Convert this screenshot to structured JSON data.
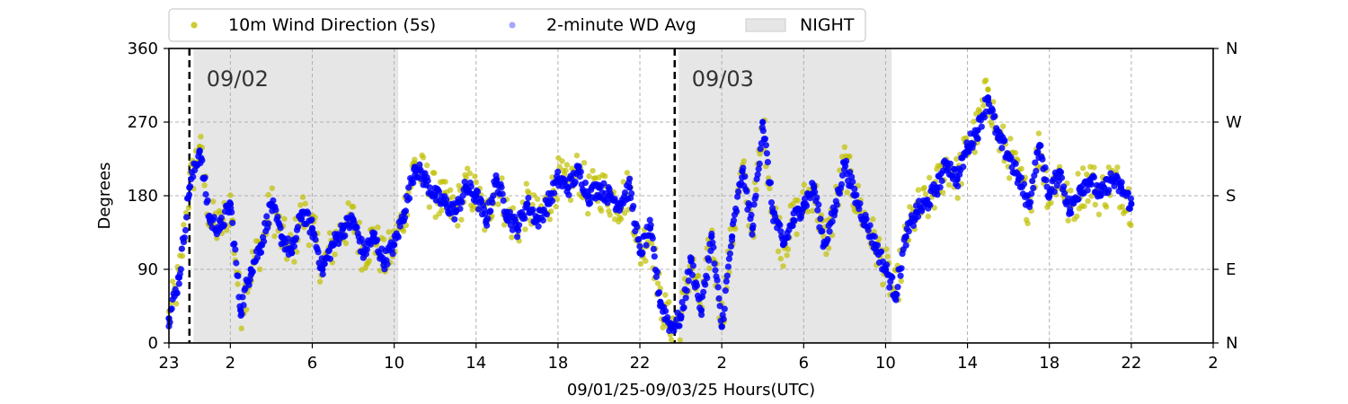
{
  "chart_data": {
    "type": "scatter",
    "xlabel": "09/01/25-09/03/25  Hours(UTC)",
    "ylabel": "Degrees",
    "x_start_label": "23",
    "xlim_hours": [
      0,
      51
    ],
    "ylim": [
      0,
      360
    ],
    "x_ticks": [
      {
        "h": 0,
        "label": "23"
      },
      {
        "h": 3,
        "label": "2"
      },
      {
        "h": 7,
        "label": "6"
      },
      {
        "h": 11,
        "label": "10"
      },
      {
        "h": 15,
        "label": "14"
      },
      {
        "h": 19,
        "label": "18"
      },
      {
        "h": 23,
        "label": "22"
      },
      {
        "h": 27,
        "label": "2"
      },
      {
        "h": 31,
        "label": "6"
      },
      {
        "h": 35,
        "label": "10"
      },
      {
        "h": 39,
        "label": "14"
      },
      {
        "h": 43,
        "label": "18"
      },
      {
        "h": 47,
        "label": "22"
      },
      {
        "h": 51,
        "label": "2"
      }
    ],
    "y_ticks": [
      0,
      90,
      180,
      270,
      360
    ],
    "y_right_labels": [
      {
        "deg": 0,
        "label": "N"
      },
      {
        "deg": 90,
        "label": "E"
      },
      {
        "deg": 180,
        "label": "S"
      },
      {
        "deg": 270,
        "label": "W"
      },
      {
        "deg": 360,
        "label": "N"
      }
    ],
    "grid": true,
    "legend_position": "top",
    "legend": [
      {
        "label": "10m Wind Direction (5s)",
        "color": "#bfbf00",
        "kind": "marker"
      },
      {
        "label": "2-minute WD Avg",
        "color": "#0000ff",
        "kind": "marker"
      },
      {
        "label": "NIGHT",
        "color": "#e6e6e6",
        "kind": "patch"
      }
    ],
    "night_periods": [
      [
        1.2,
        11.2
      ],
      [
        24.9,
        35.3
      ]
    ],
    "day_boundaries": [
      {
        "h": 1.0,
        "label": "09/02"
      },
      {
        "h": 24.7,
        "label": "09/03"
      }
    ],
    "series": [
      {
        "name": "10m Wind Direction (5s)",
        "color": "#bfbf00",
        "x_hours": [
          0,
          0.5,
          1.0,
          1.5,
          2.0,
          2.5,
          3.0,
          3.5,
          4.0,
          4.5,
          5.0,
          5.5,
          6.0,
          6.5,
          7.0,
          7.5,
          8.0,
          8.5,
          9.0,
          9.5,
          10.0,
          10.5,
          11.0,
          11.5,
          12.0,
          12.5,
          13.0,
          13.5,
          14.0,
          14.5,
          15.0,
          15.5,
          16.0,
          16.5,
          17.0,
          17.5,
          18.0,
          18.5,
          19.0,
          19.5,
          20.0,
          20.5,
          21.0,
          21.5,
          22.0,
          22.5,
          23.0,
          23.5,
          24.0,
          24.5,
          25.0,
          25.5,
          26.0,
          26.5,
          27.0,
          27.5,
          28.0,
          28.5,
          29.0,
          29.5,
          30.0,
          30.5,
          31.0,
          31.5,
          32.0,
          32.5,
          33.0,
          33.5,
          34.0,
          34.5,
          35.0,
          35.5,
          36.0,
          36.5,
          37.0,
          37.5,
          38.0,
          38.5,
          39.0,
          39.5,
          40.0,
          40.5,
          41.0,
          41.5,
          42.0,
          42.5,
          43.0,
          43.5,
          44.0,
          44.5,
          45.0,
          45.5,
          46.0,
          46.5,
          47.0
        ],
        "values": [
          30,
          80,
          190,
          240,
          150,
          140,
          170,
          40,
          90,
          120,
          170,
          130,
          110,
          160,
          140,
          90,
          120,
          140,
          150,
          110,
          130,
          100,
          120,
          160,
          220,
          200,
          180,
          170,
          160,
          190,
          180,
          150,
          200,
          160,
          140,
          170,
          150,
          170,
          200,
          190,
          210,
          180,
          190,
          180,
          170,
          190,
          110,
          140,
          50,
          20,
          30,
          100,
          40,
          130,
          30,
          130,
          210,
          140,
          270,
          160,
          120,
          150,
          170,
          190,
          120,
          160,
          220,
          180,
          150,
          120,
          90,
          60,
          130,
          160,
          170,
          190,
          220,
          200,
          240,
          260,
          310,
          250,
          230,
          200,
          170,
          240,
          180,
          210,
          160,
          190,
          200,
          180,
          200,
          190,
          170
        ]
      },
      {
        "name": "2-minute WD Avg",
        "color": "#0000ff",
        "x_hours": [
          0,
          0.5,
          1.0,
          1.5,
          2.0,
          2.5,
          3.0,
          3.5,
          4.0,
          4.5,
          5.0,
          5.5,
          6.0,
          6.5,
          7.0,
          7.5,
          8.0,
          8.5,
          9.0,
          9.5,
          10.0,
          10.5,
          11.0,
          11.5,
          12.0,
          12.5,
          13.0,
          13.5,
          14.0,
          14.5,
          15.0,
          15.5,
          16.0,
          16.5,
          17.0,
          17.5,
          18.0,
          18.5,
          19.0,
          19.5,
          20.0,
          20.5,
          21.0,
          21.5,
          22.0,
          22.5,
          23.0,
          23.5,
          24.0,
          24.5,
          25.0,
          25.5,
          26.0,
          26.5,
          27.0,
          27.5,
          28.0,
          28.5,
          29.0,
          29.5,
          30.0,
          30.5,
          31.0,
          31.5,
          32.0,
          32.5,
          33.0,
          33.5,
          34.0,
          34.5,
          35.0,
          35.5,
          36.0,
          36.5,
          37.0,
          37.5,
          38.0,
          38.5,
          39.0,
          39.5,
          40.0,
          40.5,
          41.0,
          41.5,
          42.0,
          42.5,
          43.0,
          43.5,
          44.0,
          44.5,
          45.0,
          45.5,
          46.0,
          46.5,
          47.0
        ],
        "values": [
          30,
          80,
          190,
          235,
          150,
          140,
          170,
          40,
          90,
          120,
          170,
          130,
          110,
          160,
          140,
          90,
          120,
          140,
          150,
          110,
          130,
          100,
          120,
          160,
          215,
          200,
          180,
          170,
          160,
          190,
          180,
          150,
          200,
          160,
          140,
          170,
          150,
          170,
          200,
          190,
          210,
          180,
          190,
          180,
          170,
          190,
          110,
          140,
          50,
          20,
          30,
          100,
          40,
          130,
          20,
          130,
          210,
          140,
          270,
          160,
          120,
          150,
          170,
          190,
          120,
          160,
          220,
          180,
          150,
          120,
          90,
          60,
          130,
          160,
          170,
          190,
          220,
          200,
          240,
          260,
          300,
          250,
          230,
          200,
          170,
          240,
          180,
          210,
          160,
          190,
          200,
          180,
          200,
          190,
          170
        ]
      }
    ]
  }
}
